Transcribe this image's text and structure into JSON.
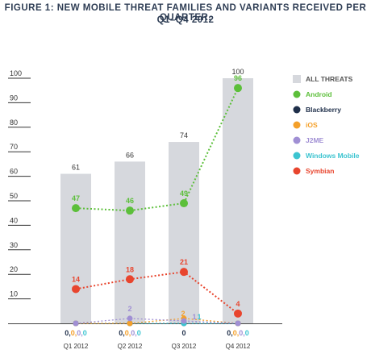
{
  "title_line1": "FIGURE 1: NEW MOBILE THREAT FAMILIES AND VARIANTS RECEIVED PER QUARTER,",
  "title_line2": "Q1–Q4 2012",
  "chart_data": {
    "type": "bar",
    "title": "FIGURE 1: NEW MOBILE THREAT FAMILIES AND VARIANTS RECEIVED PER QUARTER, Q1–Q4 2012",
    "categories": [
      "Q1 2012",
      "Q2 2012",
      "Q3 2012",
      "Q4 2012"
    ],
    "ylim": [
      0,
      100
    ],
    "yticks": [
      10,
      20,
      30,
      40,
      50,
      60,
      70,
      80,
      90,
      100
    ],
    "grid": false,
    "legend_position": "right",
    "bars": {
      "name": "ALL THREATS",
      "values": [
        61,
        66,
        74,
        100
      ],
      "color": "#d6d8dd"
    },
    "series": [
      {
        "name": "Android",
        "type": "line",
        "values": [
          47,
          46,
          49,
          96
        ],
        "color": "#5cbf3a",
        "point_labels": [
          "47",
          "46",
          "49",
          "96"
        ]
      },
      {
        "name": "Blackberry",
        "type": "line",
        "values": [
          0,
          0,
          0,
          0
        ],
        "color": "#1f2f4a"
      },
      {
        "name": "iOS",
        "type": "line",
        "values": [
          0,
          0,
          2,
          0
        ],
        "color": "#f4a02a",
        "point_labels": [
          "",
          "",
          "2",
          ""
        ]
      },
      {
        "name": "J2ME",
        "type": "line",
        "values": [
          0,
          2,
          1,
          0
        ],
        "color": "#a08fd4",
        "point_labels": [
          "",
          "2",
          "1",
          ""
        ]
      },
      {
        "name": "Windows Mobile",
        "type": "line",
        "values": [
          0,
          0,
          0,
          0
        ],
        "color": "#3cc4d0"
      },
      {
        "name": "Symbian",
        "type": "line",
        "values": [
          14,
          18,
          21,
          4
        ],
        "color": "#e8452e",
        "point_labels": [
          "14",
          "18",
          "21",
          "4"
        ]
      }
    ],
    "bottom_annotations": [
      "0,0,0,0",
      "0,0,0,0",
      "0",
      "0,0,0,0"
    ],
    "extra_annotation_q3": "1"
  }
}
